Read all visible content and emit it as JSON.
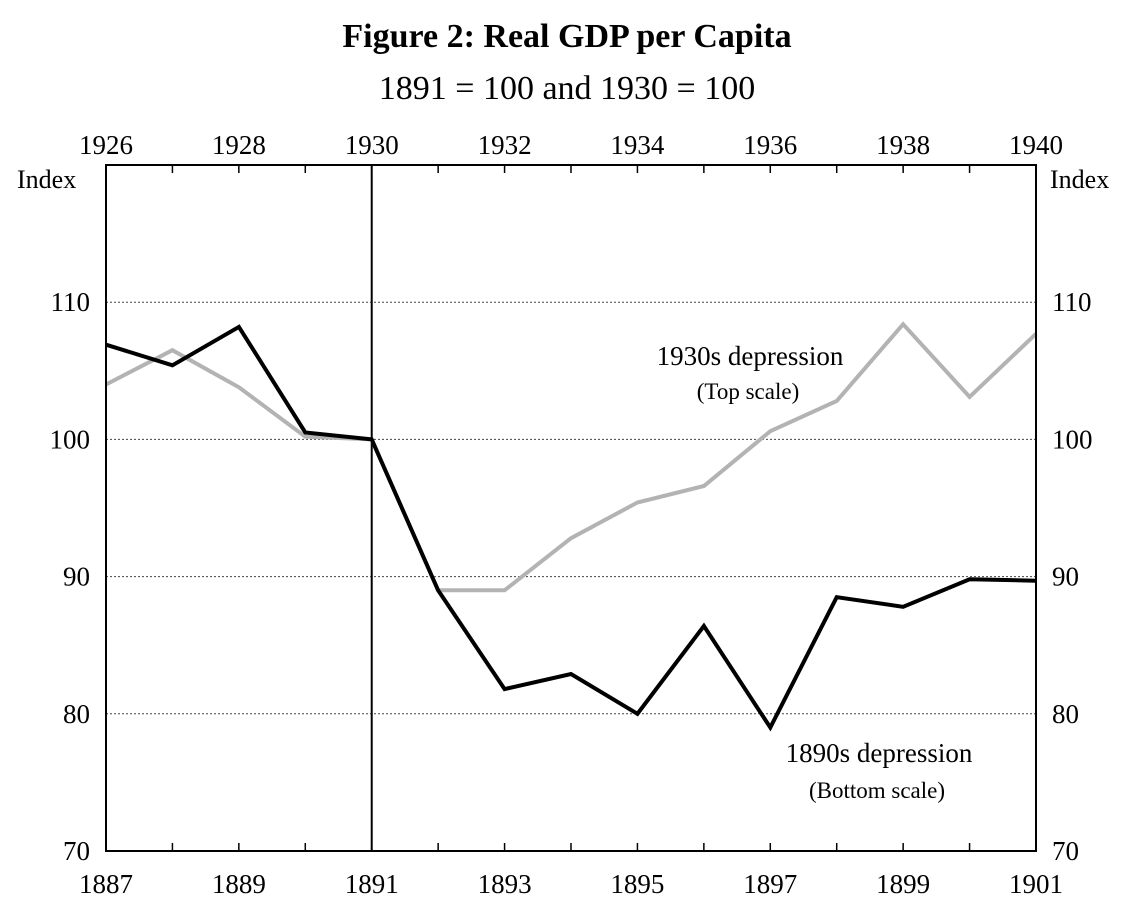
{
  "chart_data": {
    "type": "line",
    "title": "Figure 2: Real GDP per Capita",
    "subtitle": "1891 = 100 and 1930 = 100",
    "ylabel_left": "Index",
    "ylabel_right": "Index",
    "ylim": [
      70,
      120
    ],
    "yticks": [
      70,
      80,
      90,
      100,
      110
    ],
    "y_gridlines": [
      80,
      90,
      100,
      110
    ],
    "x_bottom": {
      "range": [
        1887,
        1901
      ],
      "tick_labels": [
        "1887",
        "1889",
        "1891",
        "1893",
        "1895",
        "1897",
        "1899",
        "1901"
      ]
    },
    "x_top": {
      "range": [
        1926,
        1940
      ],
      "tick_labels": [
        "1926",
        "1928",
        "1930",
        "1932",
        "1934",
        "1936",
        "1938",
        "1940"
      ]
    },
    "reference_line": {
      "x_bottom": 1891,
      "x_top": 1930
    },
    "series": [
      {
        "name": "1930s depression",
        "note": "(Top scale)",
        "axis": "top",
        "color": "#b3b3b3",
        "x": [
          1926,
          1927,
          1928,
          1929,
          1930,
          1931,
          1932,
          1933,
          1934,
          1935,
          1936,
          1937,
          1938,
          1939,
          1940
        ],
        "values": [
          104.0,
          106.5,
          103.8,
          100.2,
          100.0,
          89.0,
          89.0,
          92.8,
          95.4,
          96.6,
          100.6,
          102.8,
          108.4,
          103.1,
          107.7
        ]
      },
      {
        "name": "1890s depression",
        "note": "(Bottom scale)",
        "axis": "bottom",
        "color": "#000000",
        "x": [
          1887,
          1888,
          1889,
          1890,
          1891,
          1892,
          1893,
          1894,
          1895,
          1896,
          1897,
          1898,
          1899,
          1900,
          1901
        ],
        "values": [
          106.9,
          105.4,
          108.2,
          100.5,
          100.0,
          89.0,
          81.8,
          82.9,
          80.0,
          86.4,
          79.0,
          88.5,
          87.8,
          89.8,
          89.7
        ]
      }
    ]
  }
}
